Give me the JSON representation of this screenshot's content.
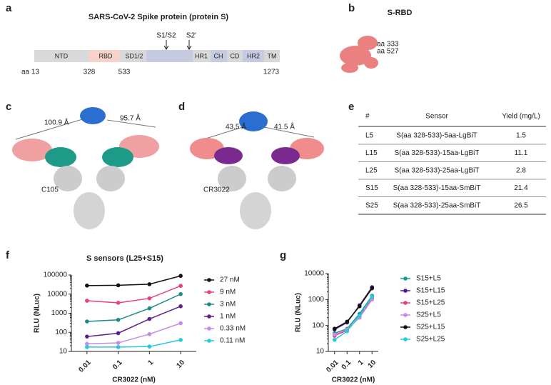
{
  "panel_labels": [
    "a",
    "b",
    "c",
    "d",
    "e",
    "f",
    "g"
  ],
  "panel_a": {
    "title": "SARS-CoV-2 Spike protein (protein S)",
    "domains": [
      "NTD",
      "RBD",
      "SD1/2",
      "HR1",
      "CH",
      "CD",
      "HR2",
      "TM"
    ],
    "cleavage_sites": [
      "S1/S2",
      "S2'"
    ],
    "positions": [
      "aa 13",
      "328",
      "533",
      "1273"
    ]
  },
  "panel_b": {
    "title": "S-RBD",
    "labels": [
      "aa 333",
      "aa 527"
    ]
  },
  "panel_c": {
    "distances": [
      "100.9 Å",
      "95.7 Å"
    ],
    "antibody": "C105"
  },
  "panel_d": {
    "distances": [
      "43.5 Å",
      "41.5 Å"
    ],
    "antibody": "CR3022"
  },
  "table": {
    "header": [
      "#",
      "Sensor",
      "Yield (mg/L)"
    ],
    "rows": [
      [
        "L5",
        "S(aa 328-533)-5aa-LgBiT",
        "1.5"
      ],
      [
        "L15",
        "S(aa 328-533)-15aa-LgBiT",
        "11.1"
      ],
      [
        "L25",
        "S(aa 328-533)-25aa-LgBiT",
        "2.8"
      ],
      [
        "S15",
        "S(aa 328-533)-15aa-SmBiT",
        "21.4"
      ],
      [
        "S25",
        "S(aa 328-533)-25aa-SmBiT",
        "26.5"
      ]
    ]
  },
  "chart_data": [
    {
      "type": "line",
      "title": "S sensors (L25+S15)",
      "x_label": "CR3022 (nM)",
      "y_label": "RLU (NLuc)",
      "categories": [
        "0.01",
        "0.1",
        "1",
        "10"
      ],
      "log_y": true,
      "ylim": [
        10,
        100000
      ],
      "yticks": [
        10,
        100,
        1000,
        10000,
        100000
      ],
      "series": [
        {
          "name": "27 nM",
          "color": "#111111",
          "values": [
            28000,
            29000,
            33000,
            90000
          ]
        },
        {
          "name": "9 nM",
          "color": "#e8407a",
          "values": [
            4500,
            3500,
            6000,
            27000
          ]
        },
        {
          "name": "3 nM",
          "color": "#1a8a84",
          "values": [
            370,
            450,
            1800,
            10000
          ]
        },
        {
          "name": "1 nM",
          "color": "#5b1f8f",
          "values": [
            60,
            90,
            500,
            2300
          ]
        },
        {
          "name": "0.33 nM",
          "color": "#c58be8",
          "values": [
            25,
            28,
            80,
            300
          ]
        },
        {
          "name": "0.11 nM",
          "color": "#27c8dc",
          "values": [
            17,
            17,
            18,
            40
          ]
        }
      ]
    },
    {
      "type": "line",
      "x_label": "CR3022 (nM)",
      "y_label": "RLU (NLuc)",
      "categories": [
        "0.01",
        "0.1",
        "1",
        "10"
      ],
      "log_y": true,
      "ylim": [
        10,
        10000
      ],
      "yticks": [
        10,
        100,
        1000,
        10000
      ],
      "series": [
        {
          "name": "S15+L5",
          "color": "#1a9a8f",
          "values": [
            50,
            75,
            280,
            1400
          ]
        },
        {
          "name": "S15+L15",
          "color": "#4b1a8a",
          "values": [
            70,
            130,
            600,
            3000
          ]
        },
        {
          "name": "S15+L25",
          "color": "#e8407a",
          "values": [
            40,
            65,
            220,
            1100
          ]
        },
        {
          "name": "S25+L5",
          "color": "#c58be8",
          "values": [
            45,
            70,
            200,
            1000
          ]
        },
        {
          "name": "S25+L15",
          "color": "#111111",
          "values": [
            75,
            140,
            550,
            2700
          ]
        },
        {
          "name": "S25+L25",
          "color": "#27c8dc",
          "values": [
            28,
            60,
            240,
            1300
          ]
        }
      ]
    }
  ]
}
